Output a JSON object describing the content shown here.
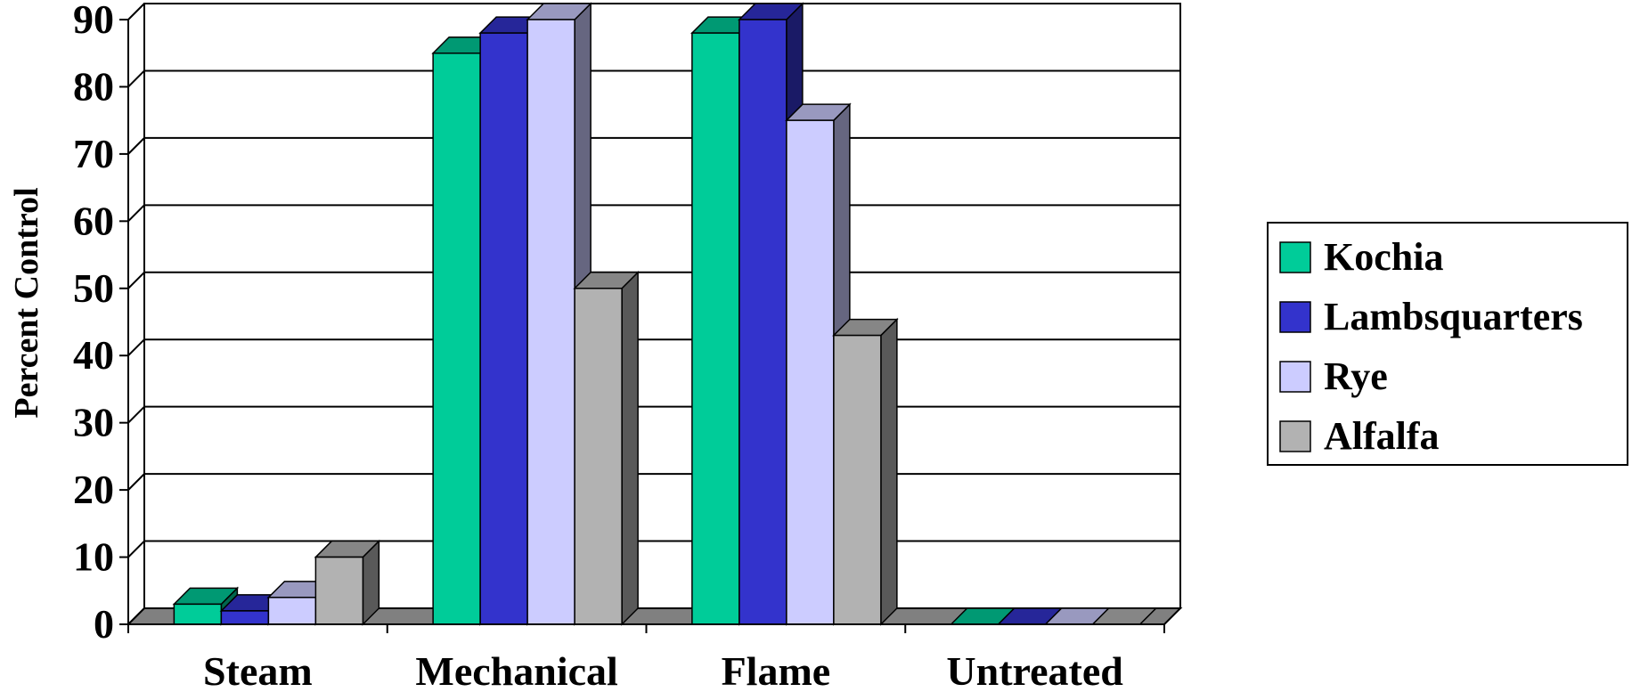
{
  "chart_data": {
    "type": "bar",
    "categories": [
      "Steam",
      "Mechanical",
      "Flame",
      "Untreated"
    ],
    "series": [
      {
        "name": "Kochia",
        "values": [
          3,
          85,
          88,
          0
        ]
      },
      {
        "name": "Lambsquarters",
        "values": [
          2,
          88,
          90,
          0
        ]
      },
      {
        "name": "Rye",
        "values": [
          4,
          90,
          75,
          0
        ]
      },
      {
        "name": "Alfalfa",
        "values": [
          10,
          50,
          43,
          0
        ]
      }
    ],
    "y_ticks": [
      "0",
      "10",
      "20",
      "30",
      "40",
      "50",
      "60",
      "70",
      "80",
      "90"
    ],
    "ylim": [
      0,
      90
    ],
    "ylabel": "Percent Control",
    "xlabel": "",
    "title": "",
    "grid": true,
    "legend_position": "right",
    "style": "3d-clustered",
    "colors": {
      "Kochia": "#00CC99",
      "Lambsquarters": "#3333CC",
      "Rye": "#CCCCFF",
      "Alfalfa": "#B2B2B2"
    }
  }
}
